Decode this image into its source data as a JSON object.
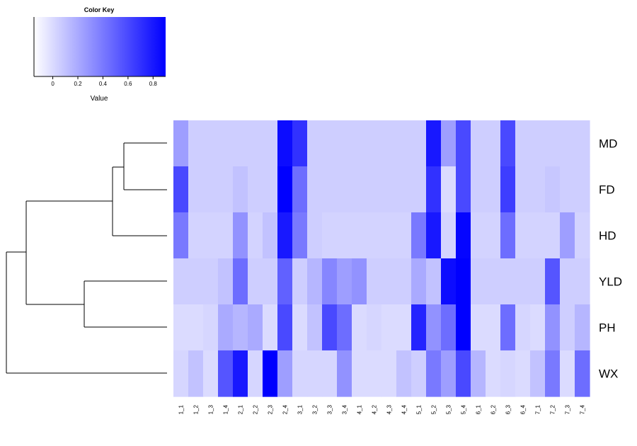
{
  "chart_data": {
    "type": "heatmap",
    "color_key": {
      "title": "Color Key",
      "xlabel": "Value",
      "ticks": [
        "0",
        "0.2",
        "0.4",
        "0.6",
        "0.8"
      ],
      "tick_values": [
        0,
        0.2,
        0.4,
        0.6,
        0.8
      ],
      "range": [
        -0.15,
        0.9
      ],
      "low_color": "#ffffff",
      "high_color": "#0000ff"
    },
    "rows": [
      "MD",
      "FD",
      "HD",
      "YLD",
      "PH",
      "WX"
    ],
    "columns": [
      "1_1",
      "1_2",
      "1_3",
      "1_4",
      "2_1",
      "2_2",
      "2_3",
      "2_4",
      "3_1",
      "3_2",
      "3_3",
      "3_4",
      "4_1",
      "4_2",
      "4_3",
      "4_4",
      "5_1",
      "5_2",
      "5_3",
      "5_4",
      "6_1",
      "6_2",
      "6_3",
      "6_4",
      "7_1",
      "7_2",
      "7_3",
      "7_4"
    ],
    "values": [
      [
        0.25,
        0.05,
        0.05,
        0.05,
        0.05,
        0.05,
        0.05,
        0.85,
        0.7,
        0.05,
        0.05,
        0.05,
        0.05,
        0.05,
        0.05,
        0.05,
        0.05,
        0.8,
        0.25,
        0.6,
        0.05,
        0.05,
        0.6,
        0.05,
        0.05,
        0.05,
        0.05,
        0.05
      ],
      [
        0.6,
        0.05,
        0.05,
        0.05,
        0.1,
        0.05,
        0.05,
        0.9,
        0.45,
        0.05,
        0.05,
        0.05,
        0.05,
        0.05,
        0.05,
        0.05,
        0.05,
        0.7,
        0.0,
        0.6,
        0.05,
        0.05,
        0.65,
        0.05,
        0.05,
        0.08,
        0.05,
        0.05
      ],
      [
        0.4,
        0.03,
        0.03,
        0.03,
        0.3,
        0.03,
        0.1,
        0.8,
        0.4,
        0.05,
        0.03,
        0.03,
        0.03,
        0.03,
        0.03,
        0.03,
        0.4,
        0.8,
        0.03,
        0.88,
        0.03,
        0.03,
        0.45,
        0.03,
        0.03,
        0.03,
        0.25,
        0.03
      ],
      [
        0.05,
        0.05,
        0.05,
        0.1,
        0.45,
        0.05,
        0.05,
        0.5,
        0.05,
        0.15,
        0.35,
        0.25,
        0.3,
        0.05,
        0.05,
        0.05,
        0.2,
        0.1,
        0.85,
        0.9,
        0.05,
        0.05,
        0.05,
        0.05,
        0.05,
        0.55,
        0.05,
        0.05
      ],
      [
        0.0,
        0.0,
        0.02,
        0.2,
        0.15,
        0.2,
        0.0,
        0.6,
        0.0,
        0.1,
        0.6,
        0.45,
        0.0,
        0.02,
        0.0,
        0.0,
        0.75,
        0.3,
        0.45,
        0.9,
        0.0,
        0.0,
        0.45,
        0.02,
        0.0,
        0.3,
        0.05,
        0.15
      ],
      [
        0.02,
        0.1,
        0.0,
        0.55,
        0.8,
        0.02,
        0.9,
        0.25,
        0.02,
        0.02,
        0.02,
        0.3,
        0.0,
        0.0,
        0.0,
        0.1,
        0.05,
        0.4,
        0.25,
        0.6,
        0.15,
        0.0,
        0.02,
        0.0,
        0.1,
        0.4,
        0.0,
        0.45
      ]
    ],
    "row_dendrogram": {
      "merges": [
        [
          "MD",
          "FD"
        ],
        [
          "MD+FD",
          "HD"
        ],
        [
          "YLD",
          "PH"
        ],
        [
          "MD+FD+HD",
          "YLD+PH"
        ],
        [
          "all_but_WX",
          "WX"
        ]
      ]
    },
    "legend_placement": "top-left",
    "grid": false
  }
}
